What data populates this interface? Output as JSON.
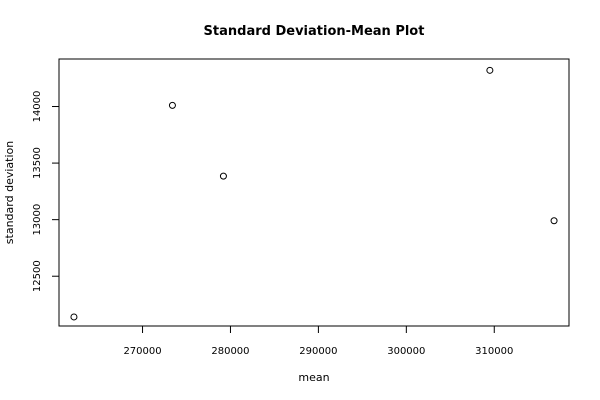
{
  "chart_data": {
    "type": "scatter",
    "title": "Standard Deviation-Mean Plot",
    "xlabel": "mean",
    "ylabel": "standard deviation",
    "xlim": [
      260500,
      318500
    ],
    "ylim": [
      12060,
      14420
    ],
    "x_ticks": [
      270000,
      280000,
      290000,
      300000,
      310000
    ],
    "y_ticks": [
      12500,
      13000,
      13500,
      14000
    ],
    "grid": false,
    "legend": "none",
    "marker": "open-circle",
    "points": [
      {
        "x": 262200,
        "y": 12140
      },
      {
        "x": 273400,
        "y": 14010
      },
      {
        "x": 279200,
        "y": 13385
      },
      {
        "x": 309500,
        "y": 14320
      },
      {
        "x": 316800,
        "y": 12990
      }
    ]
  }
}
